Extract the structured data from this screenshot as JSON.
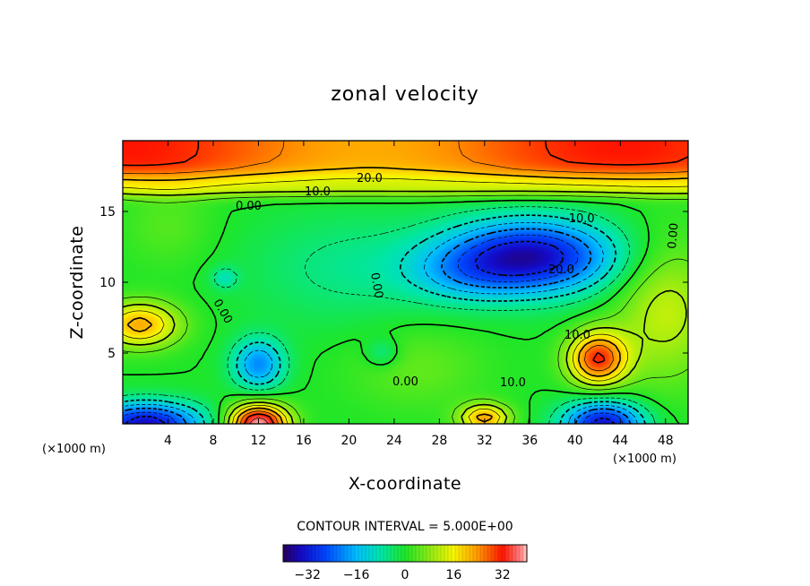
{
  "chart_data": {
    "type": "heatmap",
    "title": "zonal velocity",
    "xlabel": "X-coordinate",
    "ylabel": "Z-coordinate",
    "x_unit": "(×1000 m)",
    "y_unit": "(×1000 m)",
    "xlim": [
      0,
      50
    ],
    "ylim": [
      0,
      20
    ],
    "x_ticks": [
      "4",
      "8",
      "12",
      "16",
      "20",
      "24",
      "28",
      "32",
      "36",
      "40",
      "44",
      "48"
    ],
    "y_ticks": [
      "5",
      "10",
      "15"
    ],
    "contour_interval_text": "CONTOUR INTERVAL = 5.000E+00",
    "contour_labels": [
      "20.0",
      "10.0",
      "0.00",
      "-10.0",
      "20.0",
      "0.00",
      "0.00",
      "0.00",
      "10.0",
      "10.0",
      "0.00",
      "-10.0",
      "0.00"
    ],
    "colorbar": {
      "range": [
        -40,
        40
      ],
      "ticks": [
        "-32",
        "-16",
        "0",
        "16",
        "32"
      ]
    },
    "features": [
      {
        "x": 35,
        "z": 12,
        "value": -35,
        "kind": "jet minimum"
      },
      {
        "x": 12,
        "z": 4.2,
        "value": -20,
        "kind": "eddy"
      },
      {
        "x": 12,
        "z": 0.4,
        "value": 35,
        "kind": "surface maximum"
      },
      {
        "x": 42,
        "z": 4.5,
        "value": 30,
        "kind": "eddy"
      },
      {
        "x": 1.5,
        "z": 0.3,
        "value": -33,
        "kind": "surface minimum"
      },
      {
        "x": 42,
        "z": 0.6,
        "value": -32,
        "kind": "surface minimum"
      },
      {
        "x": 2,
        "z": 7,
        "value": 22,
        "kind": "eddy"
      },
      {
        "x": 15,
        "z": 19,
        "value": 32,
        "kind": "upper layer maximum"
      }
    ]
  }
}
